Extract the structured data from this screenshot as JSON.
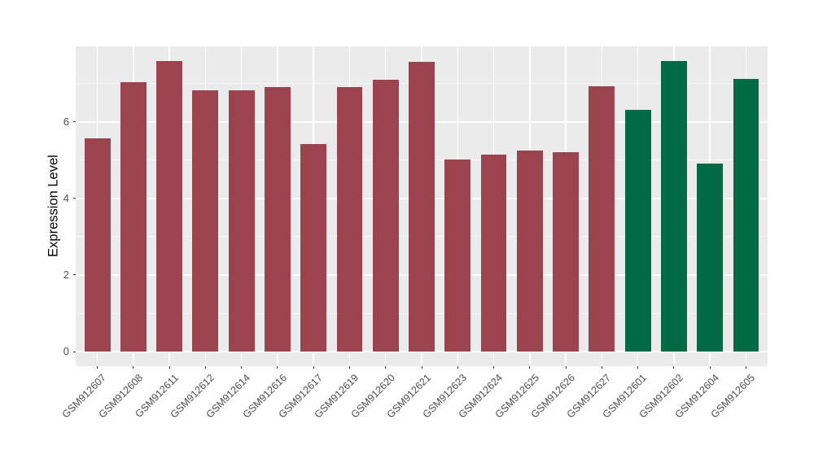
{
  "chart_data": {
    "type": "bar",
    "title": "",
    "xlabel": "",
    "ylabel": "Expression Level",
    "categories": [
      "GSM912607",
      "GSM912608",
      "GSM912611",
      "GSM912612",
      "GSM912614",
      "GSM912616",
      "GSM912617",
      "GSM912619",
      "GSM912620",
      "GSM912621",
      "GSM912623",
      "GSM912624",
      "GSM912625",
      "GSM912626",
      "GSM912627",
      "GSM912601",
      "GSM912602",
      "GSM912604",
      "GSM912605"
    ],
    "values": [
      5.57,
      7.04,
      7.58,
      6.82,
      6.82,
      6.9,
      5.42,
      6.9,
      7.1,
      7.56,
      5.02,
      5.15,
      5.24,
      5.21,
      6.92,
      6.31,
      7.59,
      4.9,
      7.11
    ],
    "bar_colors": [
      "#9B4450",
      "#9B4450",
      "#9B4450",
      "#9B4450",
      "#9B4450",
      "#9B4450",
      "#9B4450",
      "#9B4450",
      "#9B4450",
      "#9B4450",
      "#9B4450",
      "#9B4450",
      "#9B4450",
      "#9B4450",
      "#9B4450",
      "#006946",
      "#006946",
      "#006946",
      "#006946"
    ],
    "group_palette": {
      "group_1_color": "#9B4450",
      "group_2_color": "#006946"
    },
    "y_ticks": [
      0,
      2,
      4,
      6
    ],
    "y_minor_gridlines": [
      1,
      3,
      5,
      7
    ],
    "ylim": [
      0,
      7.97
    ],
    "grid": true,
    "legend": "none",
    "x_label_rotation_deg": 45,
    "panel_background": "#EBEBEB",
    "gridline_color": "#FFFFFF",
    "axis_text_color": "#4D4D4D",
    "axis_title_color": "#000000",
    "tick_mark_color": "#333333",
    "figure_background": "#FFFFFF"
  }
}
